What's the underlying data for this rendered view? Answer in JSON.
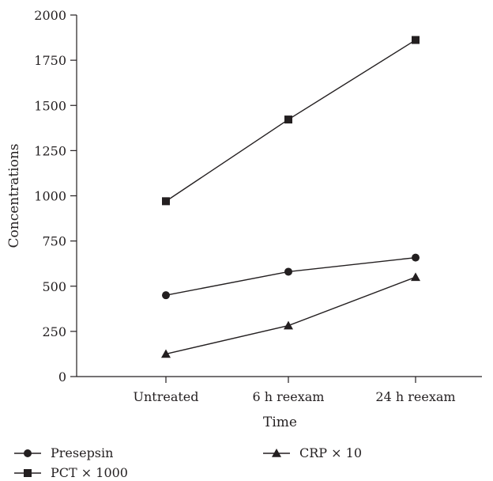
{
  "chart_data": {
    "type": "line",
    "title": "",
    "xlabel": "Time",
    "ylabel": "Concentrations",
    "categories": [
      "Untreated",
      "6 h reexam",
      "24 h reexam"
    ],
    "ylim": [
      0,
      2000
    ],
    "yticks": [
      0,
      250,
      500,
      750,
      1000,
      1250,
      1500,
      1750,
      2000
    ],
    "grid": false,
    "legend_position": "bottom-left",
    "series": [
      {
        "name": "Presepsin",
        "marker": "circle",
        "color": "#231f20",
        "values": [
          450,
          580,
          658
        ]
      },
      {
        "name": "PCT × 1000",
        "marker": "square",
        "color": "#231f20",
        "values": [
          970,
          1422,
          1862
        ]
      },
      {
        "name": "CRP × 10",
        "marker": "triangle",
        "color": "#231f20",
        "values": [
          125,
          282,
          550
        ]
      }
    ]
  }
}
